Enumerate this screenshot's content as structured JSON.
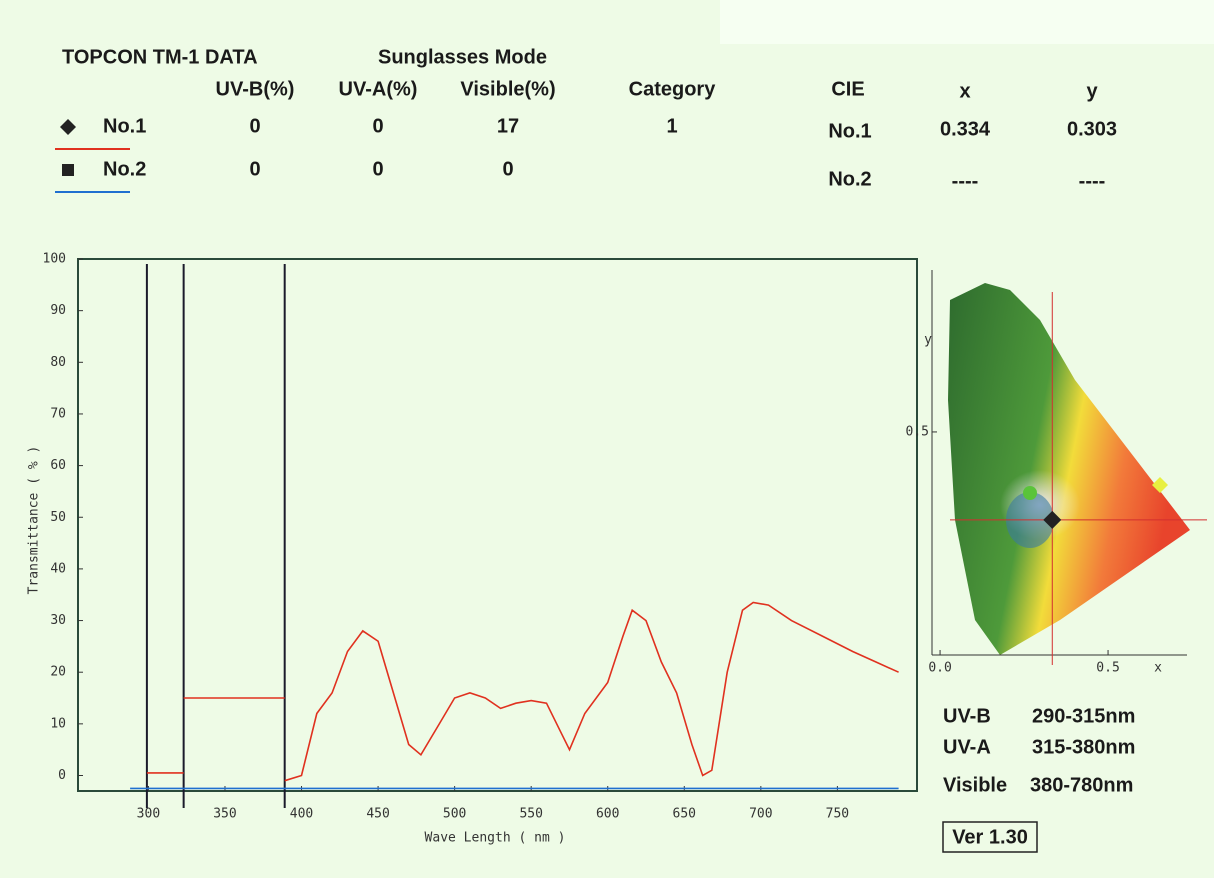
{
  "header": {
    "title": "TOPCON TM-1 DATA",
    "mode": "Sunglasses Mode"
  },
  "table": {
    "columns": [
      "UV-B(%)",
      "UV-A(%)",
      "Visible(%)",
      "Category"
    ],
    "rows": [
      {
        "values": [
          0,
          0,
          17,
          1
        ]
      },
      {
        "values": [
          0,
          0,
          0
        ]
      }
    ]
  },
  "cie": {
    "title": "CIE",
    "columns": [
      "x",
      "y"
    ],
    "rows": [
      {
        "label": "No.1",
        "values": [
          0.334,
          0.303
        ]
      },
      {
        "label": "No.2",
        "values": [
          "----",
          "----"
        ]
      }
    ]
  },
  "cie_chart": {
    "xlim": [
      -0.024,
      0.735
    ],
    "ylim": [
      0,
      0.863
    ],
    "xticks": [
      {
        "value": 0,
        "label": "0.0"
      },
      0.5
    ],
    "yticks": [
      0.5
    ],
    "x_label": "x",
    "y_label": "y",
    "color": "#d32f2f"
  },
  "ranges": [
    {
      "name": "UV-B",
      "range": "290-315nm"
    },
    {
      "name": "UV-A",
      "range": "315-380nm"
    },
    {
      "name": "Visible",
      "range": "380-780nm"
    }
  ],
  "version": "Ver 1.30",
  "chart_data": {
    "type": "line",
    "x_label": "Wave Length ( nm )",
    "y_label": "Transmittance ( % )",
    "xlim": [
      254,
      802
    ],
    "ylim": [
      -3,
      100
    ],
    "xticks": [
      300,
      350,
      400,
      450,
      500,
      550,
      600,
      650,
      700,
      750
    ],
    "yticks": [
      0,
      10,
      20,
      30,
      40,
      50,
      60,
      70,
      80,
      90,
      100
    ],
    "grid": false,
    "band_edges": [
      299,
      323,
      389
    ],
    "series": [
      {
        "name": "No.1",
        "color": "#e0311f",
        "marker": "diamond",
        "x": [
          299,
          323,
          null,
          323,
          389,
          null,
          389,
          400,
          410,
          420,
          430,
          440,
          450,
          460,
          470,
          478,
          490,
          500,
          510,
          520,
          530,
          540,
          550,
          560,
          570,
          575,
          585,
          600,
          610,
          616,
          625,
          635,
          645,
          655,
          662,
          668,
          678,
          688,
          695,
          705,
          720,
          740,
          760,
          775,
          790
        ],
        "values": [
          0.5,
          0.5,
          null,
          15,
          15,
          null,
          -1,
          0,
          12,
          16,
          24,
          28,
          26,
          16,
          6,
          4,
          10,
          15,
          16,
          15,
          13,
          14,
          14.5,
          14,
          8,
          5,
          12,
          18,
          27,
          32,
          30,
          22,
          16,
          6,
          0,
          1,
          20,
          32,
          33.5,
          33,
          30,
          27,
          24,
          22,
          20
        ]
      },
      {
        "name": "No.2",
        "color": "#1f6fd0",
        "marker": "square",
        "x": [
          288,
          790
        ],
        "values": [
          -2.5,
          -2.5
        ]
      }
    ]
  }
}
